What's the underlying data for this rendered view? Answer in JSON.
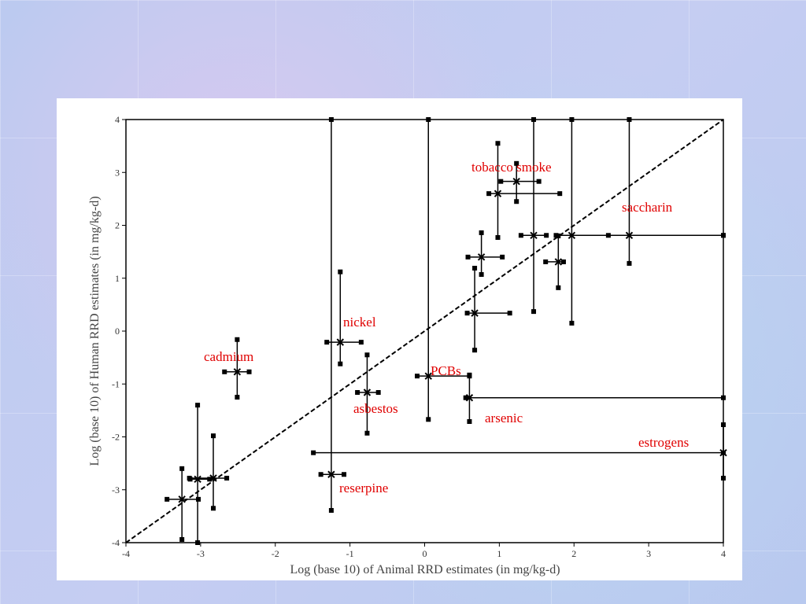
{
  "chart_data": {
    "type": "scatter",
    "xlabel": "Log (base 10) of Animal RRD estimates (in mg/kg-d)",
    "ylabel": "Log (base 10) of Human RRD estimates (in mg/kg-d)",
    "xlim": [
      -4,
      4
    ],
    "ylim": [
      -4,
      4
    ],
    "xticks": [
      -4,
      -3,
      -2,
      -1,
      0,
      1,
      2,
      3,
      4
    ],
    "yticks": [
      -4,
      -3,
      -2,
      -1,
      0,
      1,
      2,
      3,
      4
    ],
    "color": "#000000",
    "annotation_color": "#e00000",
    "series": [
      {
        "x": [
          -2.51,
          -1.13,
          -0.77,
          -1.25,
          -3.25,
          -3.04,
          -2.83,
          0.05,
          0.6,
          4,
          0.67,
          0.76,
          0.98,
          1.23,
          1.79,
          1.46,
          1.97,
          2.74
        ],
        "y": [
          -0.77,
          -0.21,
          -1.16,
          -2.71,
          -3.18,
          -2.8,
          -2.78,
          -0.85,
          -1.26,
          -2.3,
          0.34,
          1.4,
          2.6,
          2.83,
          1.31,
          1.81,
          1.81,
          1.81
        ],
        "x_low": [
          -2.68,
          -1.31,
          -0.9,
          -1.39,
          -3.45,
          -3.14,
          -3.15,
          -0.1,
          0.55,
          -1.49,
          0.57,
          0.58,
          0.86,
          1.02,
          1.62,
          1.29,
          1.76,
          2.46
        ],
        "x_high": [
          -2.35,
          -0.85,
          -0.62,
          -1.08,
          -3.03,
          -2.88,
          -2.65,
          0.6,
          4,
          4,
          1.14,
          1.04,
          1.81,
          1.53,
          1.86,
          1.63,
          4,
          4
        ],
        "y_low": [
          -1.25,
          -0.62,
          -1.93,
          -3.39,
          -3.94,
          -4,
          -3.35,
          -1.67,
          -1.71,
          -2.78,
          -0.36,
          1.07,
          1.77,
          2.45,
          0.82,
          0.37,
          0.15,
          1.28
        ],
        "y_high": [
          -0.16,
          1.12,
          -0.45,
          4,
          -2.6,
          -1.4,
          -1.98,
          4,
          -0.83,
          -1.77,
          1.19,
          1.86,
          3.55,
          3.17,
          1.8,
          4,
          4,
          4
        ]
      }
    ],
    "annotations": [
      "tobacco smoke",
      "saccharin",
      "nickel",
      "cadmium",
      "PCBs",
      "asbestos",
      "arsenic",
      "estrogens",
      "reserpine"
    ]
  }
}
